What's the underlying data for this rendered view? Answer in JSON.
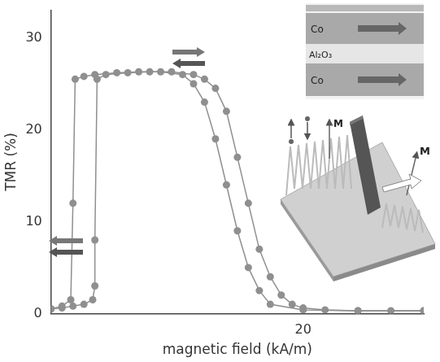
{
  "chart_data": {
    "type": "scatter",
    "x_label": "magnetic field (kA/m)",
    "y_label": "TMR (%)",
    "xlim": [
      -3,
      31
    ],
    "xticks": [
      20
    ],
    "ylim": [
      0,
      33
    ],
    "yticks": [
      0,
      10,
      20,
      30
    ],
    "grid": false,
    "series": [
      {
        "color": "#8f8f8f",
        "marker": "circle",
        "line_style": "solid",
        "x": [
          -3,
          -2,
          -1,
          0,
          0.8,
          1,
          1,
          1.2,
          2,
          4,
          6,
          8,
          10,
          11,
          12,
          13,
          14,
          15,
          16,
          17,
          18,
          19,
          20,
          22,
          25,
          28,
          31
        ],
        "values": [
          0.5,
          0.6,
          0.8,
          1,
          1.5,
          3,
          8,
          25.5,
          26,
          26.2,
          26.3,
          26.3,
          26,
          25.5,
          24.5,
          22,
          17,
          12,
          7,
          4,
          2,
          1,
          0.6,
          0.4,
          0.3,
          0.3,
          0.3
        ]
      },
      {
        "color": "#8f8f8f",
        "marker": "circle",
        "line_style": "solid",
        "x": [
          31,
          25,
          20,
          17,
          16,
          15,
          14,
          13,
          12,
          11,
          10,
          9,
          7,
          5,
          3,
          1,
          0,
          -0.8,
          -1,
          -1.2,
          -2,
          -3
        ],
        "values": [
          0.3,
          0.3,
          0.4,
          1,
          2.5,
          5,
          9,
          14,
          19,
          23,
          25,
          26,
          26.3,
          26.3,
          26.2,
          26,
          25.8,
          25.5,
          12,
          1.5,
          0.8,
          0.5
        ]
      }
    ],
    "annotations": {
      "layers": [
        "Co",
        "Al₂O₃",
        "Co"
      ],
      "magnetization": [
        "M",
        "M"
      ]
    }
  }
}
